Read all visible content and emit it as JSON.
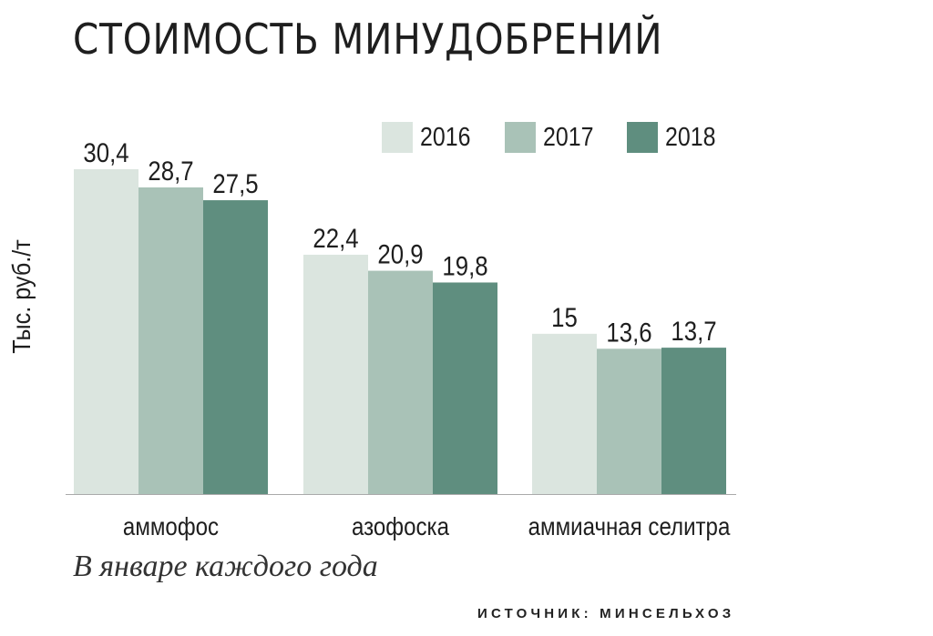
{
  "header": {
    "title": "СТОИМОСТЬ МИНУДОБРЕНИЙ"
  },
  "note": "В январе каждого года",
  "source": "ИСТОЧНИК: МИНСЕЛЬХОЗ",
  "colors": {
    "s2016": "#dbe5df",
    "s2017": "#a9c2b7",
    "s2018": "#5f8e7f",
    "text": "#1e1e1e",
    "axis": "#aaaaaa"
  },
  "chart_data": {
    "type": "bar",
    "title": "СТОИМОСТЬ МИНУДОБРЕНИЙ",
    "xlabel": "",
    "ylabel": "Тыс. руб./т",
    "ylim": [
      0,
      30.4
    ],
    "grid": false,
    "legend_position": "top-right",
    "categories": [
      "аммофос",
      "азофоска",
      "аммиачная селитра"
    ],
    "series": [
      {
        "name": "2016",
        "values": [
          30.4,
          22.4,
          15
        ],
        "labels": [
          "30,4",
          "22,4",
          "15"
        ],
        "color": "#dbe5df"
      },
      {
        "name": "2017",
        "values": [
          28.7,
          20.9,
          13.6
        ],
        "labels": [
          "28,7",
          "20,9",
          "13,6"
        ],
        "color": "#a9c2b7"
      },
      {
        "name": "2018",
        "values": [
          27.5,
          19.8,
          13.7
        ],
        "labels": [
          "27,5",
          "19,8",
          "13,7"
        ],
        "color": "#5f8e7f"
      }
    ]
  }
}
